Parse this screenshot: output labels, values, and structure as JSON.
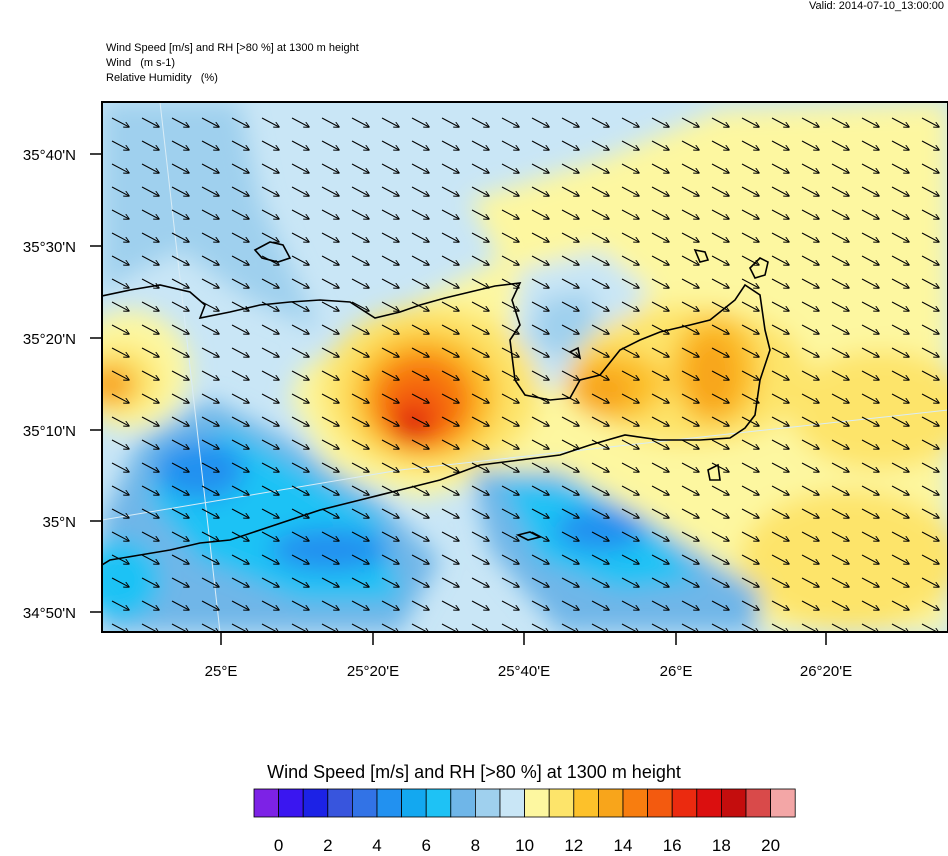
{
  "valid": "Valid: 2014-07-10_13:00:00",
  "header": {
    "line1": "Wind Speed [m/s] and RH [>80 %] at 1300 m height",
    "line2": "Wind   (m s-1)",
    "line3": "Relative Humidity   (%)"
  },
  "lat_labels": [
    "35°40'N",
    "35°30'N",
    "35°20'N",
    "35°10'N",
    "35°N",
    "34°50'N"
  ],
  "lon_labels": [
    "25°E",
    "25°20'E",
    "25°40'E",
    "26°E",
    "26°20'E"
  ],
  "colorbar": {
    "title": "Wind Speed [m/s] and RH [>80 %] at 1300 m height",
    "labels": [
      "0",
      "2",
      "4",
      "6",
      "8",
      "10",
      "12",
      "14",
      "16",
      "18",
      "20"
    ],
    "colors": [
      "#7d22e6",
      "#3a16f0",
      "#1c22e6",
      "#3855dd",
      "#3273e6",
      "#2291f0",
      "#13a8f0",
      "#1ec2f5",
      "#6fb6e8",
      "#9fd0ee",
      "#c9e6f6",
      "#fdf7a0",
      "#fde46a",
      "#fdc12a",
      "#f8a51b",
      "#f87d0f",
      "#f35a0f",
      "#eb2a0f",
      "#db0f0f",
      "#c40d0d",
      "#d94a4a",
      "#f3a6a6"
    ]
  },
  "colors": {
    "background_field": "#c9e6f6",
    "coastline": "#000000",
    "arrow": "#000000"
  }
}
